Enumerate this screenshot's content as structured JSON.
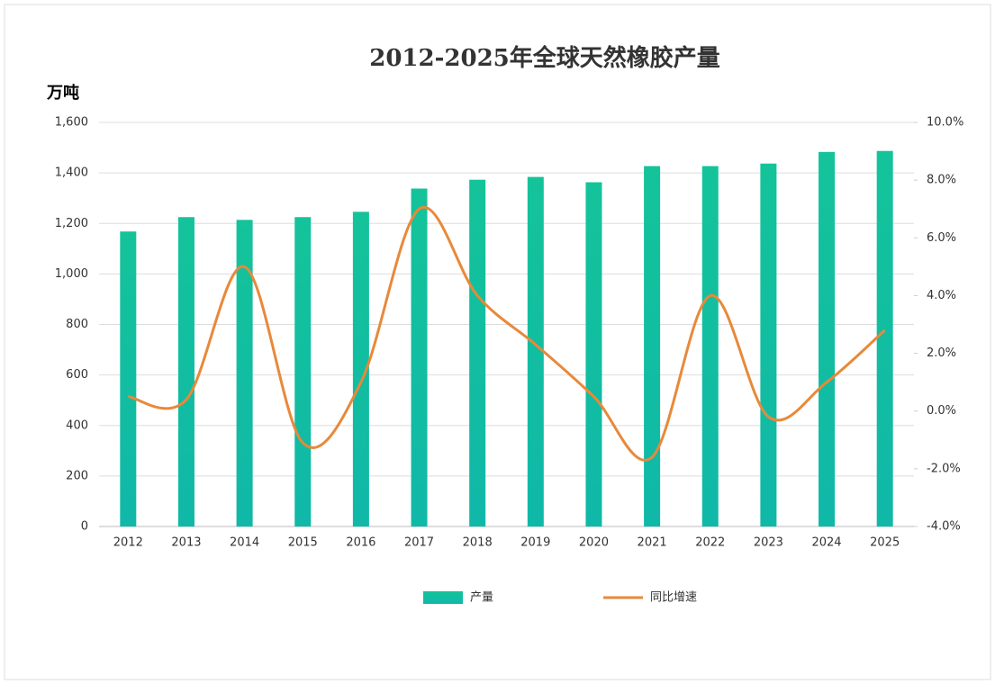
{
  "chart_data": {
    "type": "bar-line",
    "title": "2012-2025年全球天然橡胶产量",
    "y_unit": "万吨",
    "categories": [
      "2012",
      "2013",
      "2014",
      "2015",
      "2016",
      "2017",
      "2018",
      "2019",
      "2020",
      "2021",
      "2022",
      "2023",
      "2024",
      "2025"
    ],
    "series": [
      {
        "name": "产量",
        "color": "#14c39a",
        "type": "bar",
        "values": [
          1168,
          1225,
          1214,
          1225,
          1246,
          1338,
          1373,
          1384,
          1363,
          1427,
          1427,
          1437,
          1483,
          1487
        ]
      },
      {
        "name": "同比增速",
        "color": "#e8893a",
        "type": "line",
        "axis": "y2",
        "values": [
          0.5,
          0.4,
          5.0,
          -1.1,
          1.0,
          7.0,
          4.0,
          2.3,
          0.5,
          -1.6,
          4.0,
          -0.2,
          1.0,
          2.8
        ]
      }
    ],
    "ylim": [
      0,
      1600
    ],
    "yticks": [
      0,
      200,
      400,
      600,
      800,
      {
        "value": 1000,
        "label": "1,000"
      },
      {
        "value": 1200,
        "label": "1,200"
      },
      {
        "value": 1400,
        "label": "1,400"
      },
      {
        "value": 1600,
        "label": "1,600"
      }
    ],
    "y2lim": [
      -4,
      10
    ],
    "y2ticks": [
      {
        "value": -4,
        "label": "-4.0%"
      },
      {
        "value": -2,
        "label": "-2.0%"
      },
      {
        "value": 0,
        "label": "0.0%"
      },
      {
        "value": 2,
        "label": "2.0%"
      },
      {
        "value": 4,
        "label": "4.0%"
      },
      {
        "value": 6,
        "label": "6.0%"
      },
      {
        "value": 8,
        "label": "8.0%"
      },
      {
        "value": 10,
        "label": "10.0%"
      }
    ],
    "grid": true,
    "legend": "bottom"
  }
}
